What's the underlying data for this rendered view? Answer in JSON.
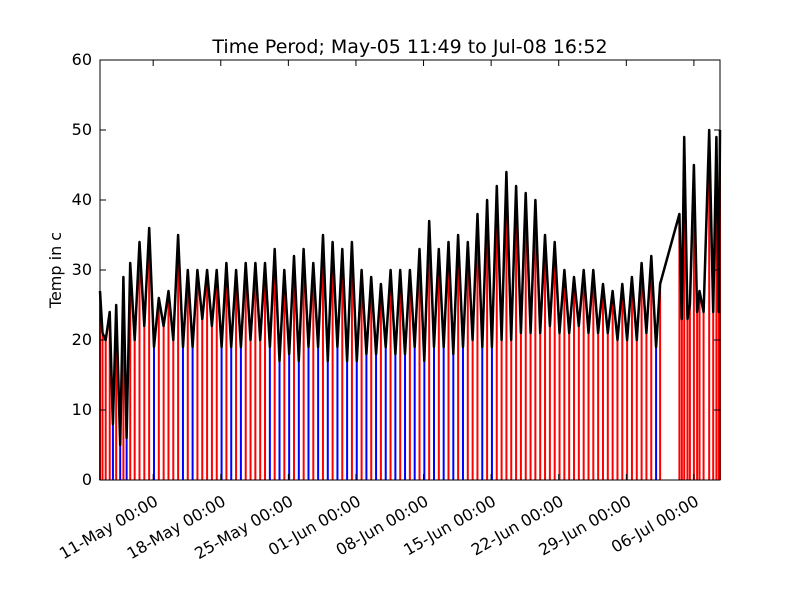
{
  "chart_data": {
    "type": "line",
    "title": "Time Perod; May-05 11:49 to Jul-08 16:52",
    "xlabel": "",
    "ylabel": "Temp in c",
    "ylim": [
      0,
      60
    ],
    "yticks": [
      0,
      10,
      20,
      30,
      40,
      50,
      60
    ],
    "xlim": [
      "2017-05-05 11:49",
      "2017-07-08 16:52"
    ],
    "xticks": [
      "11-May 00:00",
      "18-May 00:00",
      "25-May 00:00",
      "01-Jun 00:00",
      "08-Jun 00:00",
      "15-Jun 00:00",
      "22-Jun 00:00",
      "29-Jun 00:00",
      "06-Jul 00:00"
    ],
    "grid": false,
    "colors": {
      "temperature_line": "#000000",
      "warm_bars": "#ff0000",
      "cool_bars": "#0000ff",
      "axes": "#000000",
      "background": "#ffffff"
    },
    "series": [
      {
        "color": "#000000",
        "x": [
          "2017-05-05 11:49",
          "2017-05-05 18:00",
          "2017-05-06 02:00",
          "2017-05-06 12:00",
          "2017-05-06 20:00",
          "2017-05-07 04:00",
          "2017-05-07 14:00",
          "2017-05-07 22:00",
          "2017-05-08 06:00",
          "2017-05-08 15:00",
          "2017-05-09 02:00",
          "2017-05-09 14:00",
          "2017-05-10 02:00",
          "2017-05-10 14:00",
          "2017-05-11 02:00",
          "2017-05-11 14:00",
          "2017-05-12 02:00",
          "2017-05-12 14:00",
          "2017-05-13 02:00",
          "2017-05-13 14:00",
          "2017-05-14 02:00",
          "2017-05-14 14:00",
          "2017-05-15 02:00",
          "2017-05-15 14:00",
          "2017-05-16 02:00",
          "2017-05-16 14:00",
          "2017-05-17 02:00",
          "2017-05-17 14:00",
          "2017-05-18 02:00",
          "2017-05-18 14:00",
          "2017-05-19 02:00",
          "2017-05-19 14:00",
          "2017-05-20 02:00",
          "2017-05-20 14:00",
          "2017-05-21 02:00",
          "2017-05-21 14:00",
          "2017-05-22 02:00",
          "2017-05-22 14:00",
          "2017-05-23 02:00",
          "2017-05-23 14:00",
          "2017-05-24 02:00",
          "2017-05-24 14:00",
          "2017-05-25 02:00",
          "2017-05-25 14:00",
          "2017-05-26 02:00",
          "2017-05-26 14:00",
          "2017-05-27 02:00",
          "2017-05-27 14:00",
          "2017-05-28 02:00",
          "2017-05-28 14:00",
          "2017-05-29 02:00",
          "2017-05-29 14:00",
          "2017-05-30 02:00",
          "2017-05-30 14:00",
          "2017-05-31 02:00",
          "2017-05-31 14:00",
          "2017-06-01 02:00",
          "2017-06-01 14:00",
          "2017-06-02 02:00",
          "2017-06-02 14:00",
          "2017-06-03 02:00",
          "2017-06-03 14:00",
          "2017-06-04 02:00",
          "2017-06-04 14:00",
          "2017-06-05 02:00",
          "2017-06-05 14:00",
          "2017-06-06 02:00",
          "2017-06-06 14:00",
          "2017-06-07 02:00",
          "2017-06-07 14:00",
          "2017-06-08 02:00",
          "2017-06-08 14:00",
          "2017-06-09 02:00",
          "2017-06-09 14:00",
          "2017-06-10 02:00",
          "2017-06-10 14:00",
          "2017-06-11 02:00",
          "2017-06-11 14:00",
          "2017-06-12 02:00",
          "2017-06-12 14:00",
          "2017-06-13 02:00",
          "2017-06-13 14:00",
          "2017-06-14 02:00",
          "2017-06-14 14:00",
          "2017-06-15 02:00",
          "2017-06-15 14:00",
          "2017-06-16 02:00",
          "2017-06-16 14:00",
          "2017-06-17 02:00",
          "2017-06-17 14:00",
          "2017-06-18 02:00",
          "2017-06-18 14:00",
          "2017-06-19 02:00",
          "2017-06-19 14:00",
          "2017-06-20 02:00",
          "2017-06-20 14:00",
          "2017-06-21 02:00",
          "2017-06-21 14:00",
          "2017-06-22 02:00",
          "2017-06-22 14:00",
          "2017-06-23 02:00",
          "2017-06-23 14:00",
          "2017-06-24 02:00",
          "2017-06-24 14:00",
          "2017-06-25 02:00",
          "2017-06-25 14:00",
          "2017-06-26 02:00",
          "2017-06-26 14:00",
          "2017-06-27 02:00",
          "2017-06-27 14:00",
          "2017-06-28 02:00",
          "2017-06-28 14:00",
          "2017-06-29 02:00",
          "2017-06-29 14:00",
          "2017-06-30 02:00",
          "2017-06-30 14:00",
          "2017-07-01 02:00",
          "2017-07-01 14:00",
          "2017-07-02 02:00",
          "2017-07-02 12:00",
          "2017-07-04 12:00",
          "2017-07-04 18:00",
          "2017-07-05 00:00",
          "2017-07-05 08:00",
          "2017-07-05 14:00",
          "2017-07-06 00:00",
          "2017-07-06 08:00",
          "2017-07-06 14:00",
          "2017-07-07 00:00",
          "2017-07-07 14:00",
          "2017-07-08 00:00",
          "2017-07-08 08:00",
          "2017-07-08 14:00",
          "2017-07-08 16:52"
        ],
        "y": [
          27,
          21,
          20,
          24,
          8,
          25,
          5,
          29,
          6,
          31,
          20,
          34,
          22,
          36,
          19,
          26,
          22,
          27,
          20,
          35,
          19,
          30,
          19,
          30,
          23,
          30,
          22,
          30,
          19,
          31,
          19,
          30,
          19,
          31,
          20,
          31,
          20,
          31,
          19,
          33,
          17,
          30,
          18,
          32,
          17,
          33,
          19,
          31,
          19,
          35,
          17,
          34,
          19,
          33,
          17,
          34,
          17,
          30,
          18,
          29,
          18,
          28,
          19,
          30,
          18,
          30,
          18,
          30,
          19,
          33,
          17,
          37,
          19,
          33,
          19,
          34,
          18,
          35,
          19,
          34,
          20,
          38,
          19,
          40,
          19,
          42,
          20,
          44,
          20,
          42,
          21,
          41,
          21,
          40,
          21,
          35,
          22,
          34,
          21,
          30,
          21,
          29,
          22,
          30,
          21,
          30,
          21,
          28,
          21,
          27,
          20,
          28,
          20,
          29,
          20,
          31,
          21,
          32,
          19,
          28,
          38,
          23,
          49,
          23,
          25,
          45,
          24,
          27,
          24,
          50,
          24,
          49,
          24,
          50
        ]
      }
    ]
  }
}
